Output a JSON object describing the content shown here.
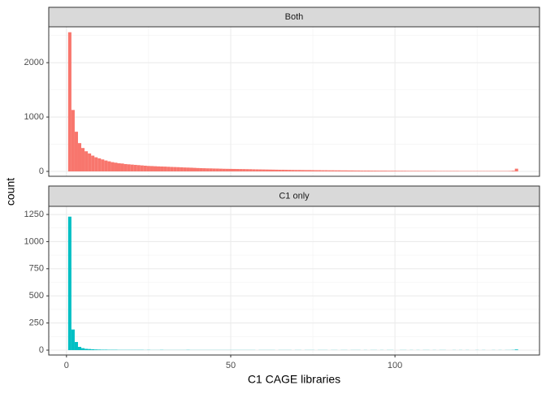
{
  "chart_data": [
    {
      "type": "histogram",
      "title": "Both",
      "color": "#F8766D",
      "bins": [
        0.5,
        1.5,
        2.5,
        3.5,
        4.5,
        5.5,
        6.5,
        7.5,
        8.5,
        9.5,
        10.5,
        11.5,
        12.5,
        13.5,
        14.5,
        15.5,
        16.5,
        17.5,
        18.5,
        19.5,
        20.5,
        21.5,
        22.5,
        23.5,
        24.5,
        25.5,
        26.5,
        27.5,
        28.5,
        29.5,
        30.5,
        31.5,
        32.5,
        33.5,
        34.5,
        35.5,
        36.5,
        37.5,
        38.5,
        39.5,
        40.5,
        41.5,
        42.5,
        43.5,
        44.5,
        45.5,
        46.5,
        47.5,
        48.5,
        49.5,
        50.5,
        51.5,
        52.5,
        53.5,
        54.5,
        55.5,
        56.5,
        57.5,
        58.5,
        59.5,
        60.5,
        61.5,
        62.5,
        63.5,
        64.5,
        65.5,
        66.5,
        67.5,
        68.5,
        69.5,
        70.5,
        71.5,
        72.5,
        73.5,
        74.5,
        75.5,
        76.5,
        77.5,
        78.5,
        79.5,
        80.5,
        81.5,
        82.5,
        83.5,
        84.5,
        85.5,
        86.5,
        87.5,
        88.5,
        89.5,
        90.5,
        91.5,
        92.5,
        93.5,
        94.5,
        95.5,
        96.5,
        97.5,
        98.5,
        99.5,
        100.5,
        101.5,
        102.5,
        103.5,
        104.5,
        105.5,
        106.5,
        107.5,
        108.5,
        109.5,
        110.5,
        111.5,
        112.5,
        113.5,
        114.5,
        115.5,
        116.5,
        117.5,
        118.5,
        119.5,
        120.5,
        121.5,
        122.5,
        123.5,
        124.5,
        125.5,
        126.5,
        127.5,
        128.5,
        129.5,
        130.5,
        131.5,
        132.5,
        133.5,
        134.5,
        135.5,
        136.5,
        137.5
      ],
      "values": [
        2560,
        1130,
        730,
        520,
        430,
        370,
        330,
        290,
        260,
        240,
        220,
        200,
        185,
        170,
        160,
        150,
        145,
        135,
        130,
        125,
        120,
        115,
        110,
        105,
        100,
        98,
        95,
        92,
        90,
        88,
        85,
        82,
        80,
        78,
        75,
        72,
        70,
        68,
        65,
        62,
        60,
        58,
        56,
        55,
        53,
        52,
        50,
        48,
        47,
        46,
        45,
        44,
        43,
        42,
        41,
        40,
        38,
        37,
        36,
        35,
        34,
        33,
        32,
        31,
        30,
        30,
        29,
        28,
        27,
        26,
        26,
        25,
        24,
        24,
        23,
        22,
        22,
        21,
        21,
        20,
        20,
        19,
        19,
        18,
        18,
        17,
        17,
        16,
        16,
        15,
        15,
        15,
        14,
        14,
        13,
        13,
        13,
        12,
        12,
        12,
        11,
        11,
        11,
        10,
        10,
        10,
        10,
        9,
        9,
        9,
        9,
        9,
        8,
        8,
        8,
        8,
        8,
        8,
        8,
        7,
        7,
        7,
        7,
        7,
        7,
        7,
        7,
        7,
        7,
        7,
        7,
        7,
        7,
        7,
        8,
        12,
        50
      ],
      "xlim": [
        -5.4,
        144
      ],
      "xticks": [
        0,
        50,
        100
      ],
      "ylim": [
        -90,
        2660
      ],
      "yticks": [
        0,
        1000,
        2000
      ],
      "grid": true
    },
    {
      "type": "histogram",
      "title": "C1 only",
      "color": "#00BFC4",
      "bins": [
        0.5,
        1.5,
        2.5,
        3.5,
        4.5,
        5.5,
        6.5,
        7.5,
        8.5,
        9.5,
        10.5,
        11.5,
        12.5,
        13.5,
        14.5,
        15.5,
        16.5,
        17.5,
        18.5,
        19.5,
        20.5,
        21.5,
        22.5,
        23.5,
        24.5,
        25.5,
        26.5,
        27.5,
        28.5,
        29.5,
        30.5,
        31.5,
        32.5,
        33.5,
        34.5,
        35.5,
        36.5,
        37.5,
        38.5,
        39.5,
        40.5,
        41.5,
        42.5,
        43.5,
        44.5,
        45.5,
        46.5,
        47.5,
        48.5,
        49.5,
        50.5,
        51.5,
        52.5,
        53.5,
        54.5,
        55.5,
        56.5,
        57.5,
        58.5,
        59.5,
        60.5,
        61.5,
        62.5,
        63.5,
        64.5,
        65.5,
        66.5,
        67.5,
        68.5,
        69.5,
        70.5,
        71.5,
        72.5,
        73.5,
        74.5,
        75.5,
        76.5,
        77.5,
        78.5,
        79.5,
        80.5,
        81.5,
        82.5,
        83.5,
        84.5,
        85.5,
        86.5,
        87.5,
        88.5,
        89.5,
        90.5,
        91.5,
        92.5,
        93.5,
        94.5,
        95.5,
        96.5,
        97.5,
        98.5,
        99.5,
        100.5,
        101.5,
        102.5,
        103.5,
        104.5,
        105.5,
        106.5,
        107.5,
        108.5,
        109.5,
        110.5,
        111.5,
        112.5,
        113.5,
        114.5,
        115.5,
        116.5,
        117.5,
        118.5,
        119.5,
        120.5,
        121.5,
        122.5,
        123.5,
        124.5,
        125.5,
        126.5,
        127.5,
        128.5,
        129.5,
        130.5,
        131.5,
        132.5,
        133.5,
        134.5,
        135.5,
        136.5,
        137.5
      ],
      "values": [
        1230,
        190,
        75,
        30,
        18,
        12,
        10,
        8,
        6,
        5,
        4,
        4,
        3,
        3,
        3,
        2,
        2,
        2,
        2,
        2,
        2,
        2,
        2,
        1,
        2,
        1,
        1,
        1,
        2,
        1,
        1,
        1,
        1,
        1,
        1,
        1,
        2,
        1,
        1,
        1,
        1,
        1,
        1,
        1,
        1,
        1,
        1,
        1,
        1,
        1,
        1,
        1,
        1,
        1,
        1,
        1,
        1,
        0,
        1,
        1,
        1,
        1,
        1,
        0,
        1,
        1,
        1,
        1,
        0,
        1,
        1,
        0,
        1,
        1,
        1,
        0,
        1,
        1,
        1,
        0,
        1,
        1,
        0,
        1,
        1,
        0,
        1,
        1,
        1,
        0,
        1,
        0,
        1,
        1,
        0,
        1,
        0,
        1,
        1,
        0,
        0,
        1,
        1,
        0,
        1,
        0,
        1,
        0,
        1,
        1,
        0,
        1,
        0,
        1,
        1,
        0,
        0,
        1,
        0,
        1,
        0,
        1,
        0,
        0,
        1,
        0,
        1,
        0,
        0,
        1,
        0,
        1,
        0,
        1,
        1,
        2,
        6
      ],
      "xlim": [
        -5.4,
        144
      ],
      "xticks": [
        0,
        50,
        100
      ],
      "ylim": [
        -45,
        1325
      ],
      "yticks": [
        0,
        250,
        500,
        750,
        1000,
        1250
      ],
      "grid": true
    }
  ],
  "xlabel": "C1 CAGE libraries",
  "ylabel": "count"
}
